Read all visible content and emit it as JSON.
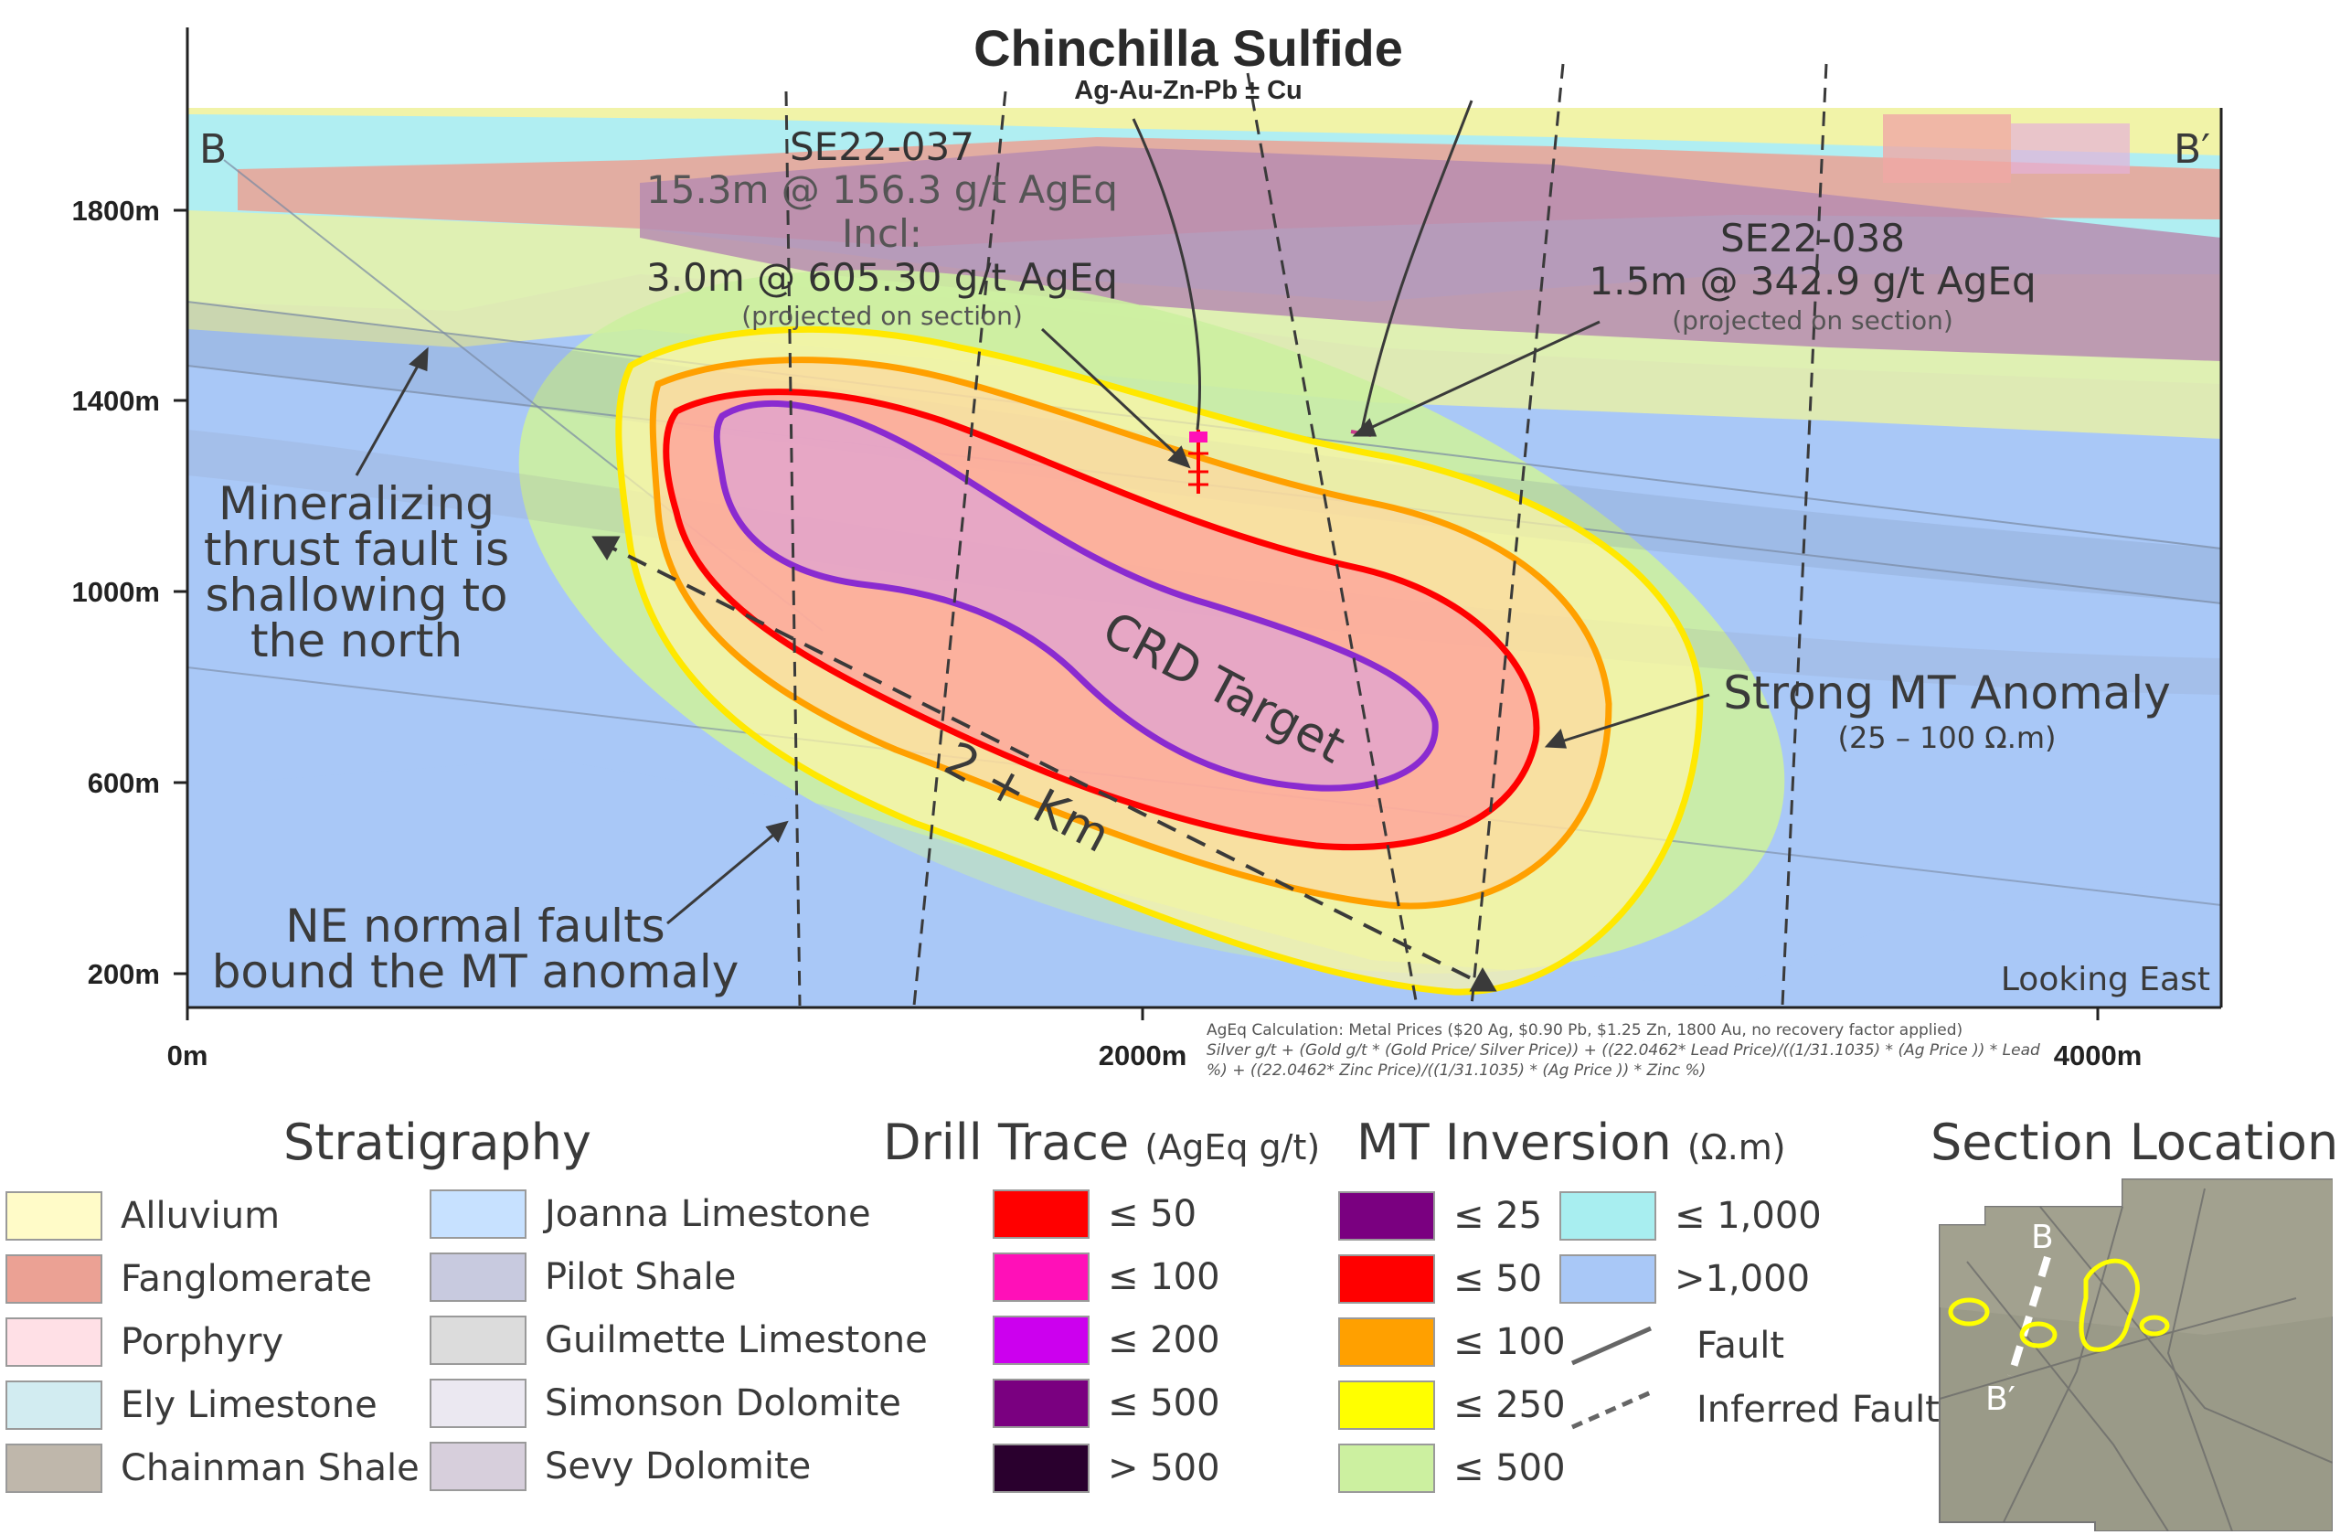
{
  "title": "Chinchilla Sulfide",
  "subtitle": "Ag-Au-Zn-Pb ± Cu",
  "section": {
    "left_label": "B",
    "right_label": "B′",
    "view": "Looking East",
    "y_axis": [
      "1800m",
      "1400m",
      "1000m",
      "600m",
      "200m"
    ],
    "x_axis": [
      "0m",
      "2000m",
      "4000m"
    ]
  },
  "drillholes": {
    "se22_037": {
      "name": "SE22-037",
      "result": "15.3m @ 156.3 g/t AgEq",
      "incl": "Incl:",
      "incl_result": "3.0m @ 605.30 g/t AgEq",
      "note": "(projected on section)"
    },
    "se22_038": {
      "name": "SE22-038",
      "result": "1.5m @ 342.9 g/t AgEq",
      "note": "(projected on section)"
    }
  },
  "annotations": {
    "thrust_fault": [
      "Mineralizing",
      "thrust fault is",
      "shallowing to",
      "the north"
    ],
    "ne_faults": [
      "NE normal faults",
      "bound the MT anomaly"
    ],
    "crd_target": "CRD Target",
    "length": "2 + Km",
    "mt_anomaly": "Strong MT Anomaly",
    "mt_anomaly_range": "(25 – 100 Ω.m)",
    "ageq_calc": [
      "AgEq Calculation: Metal Prices ($20 Ag, $0.90 Pb, $1.25 Zn, 1800 Au, no recovery factor applied)",
      "Silver g/t + (Gold g/t * (Gold Price/ Silver Price)) + ((22.0462* Lead Price)/((1/31.1035) * (Ag Price )) * Lead",
      "%) + ((22.0462* Zinc Price)/((1/31.1035) * (Ag Price )) * Zinc %)"
    ]
  },
  "legend": {
    "stratigraphy": {
      "title": "Stratigraphy",
      "items": [
        {
          "label": "Alluvium",
          "color": "#fffbc8"
        },
        {
          "label": "Fanglomerate",
          "color": "#eba194"
        },
        {
          "label": "Porphyry",
          "color": "#ffe0e6"
        },
        {
          "label": "Ely Limestone",
          "color": "#d2ecf1"
        },
        {
          "label": "Chainman Shale",
          "color": "#bfb7ab"
        },
        {
          "label": "Joanna Limestone",
          "color": "#c7e1ff"
        },
        {
          "label": "Pilot Shale",
          "color": "#c8cadf"
        },
        {
          "label": "Guilmette Limestone",
          "color": "#dcdcdc"
        },
        {
          "label": "Simonson Dolomite",
          "color": "#ebe8f1"
        },
        {
          "label": "Sevy Dolomite",
          "color": "#d7cfdc"
        }
      ]
    },
    "drill_trace": {
      "title": "Drill Trace",
      "unit": "(AgEq g/t)",
      "items": [
        {
          "label": "≤ 50",
          "color": "#ff0000"
        },
        {
          "label": "≤ 100",
          "color": "#ff10b8"
        },
        {
          "label": "≤ 200",
          "color": "#cc00ee"
        },
        {
          "label": "≤ 500",
          "color": "#7a0080"
        },
        {
          "label": "> 500",
          "color": "#2a002e"
        }
      ]
    },
    "mt_inversion": {
      "title": "MT Inversion",
      "unit": "(Ω.m)",
      "items": [
        {
          "label": "≤ 25",
          "color": "#7a0080"
        },
        {
          "label": "≤ 50",
          "color": "#ff0000"
        },
        {
          "label": "≤ 100",
          "color": "#ffa000"
        },
        {
          "label": "≤ 250",
          "color": "#ffff00"
        },
        {
          "label": "≤ 500",
          "color": "#ccf0a0"
        },
        {
          "label": "≤ 1,000",
          "color": "#a8eef0"
        },
        {
          "label": ">1,000",
          "color": "#a9c8f7"
        }
      ],
      "fault_label": "Fault",
      "inferred_fault_label": "Inferred Fault"
    },
    "section_location": {
      "title": "Section Location",
      "b": "B",
      "b_prime": "B′"
    }
  }
}
